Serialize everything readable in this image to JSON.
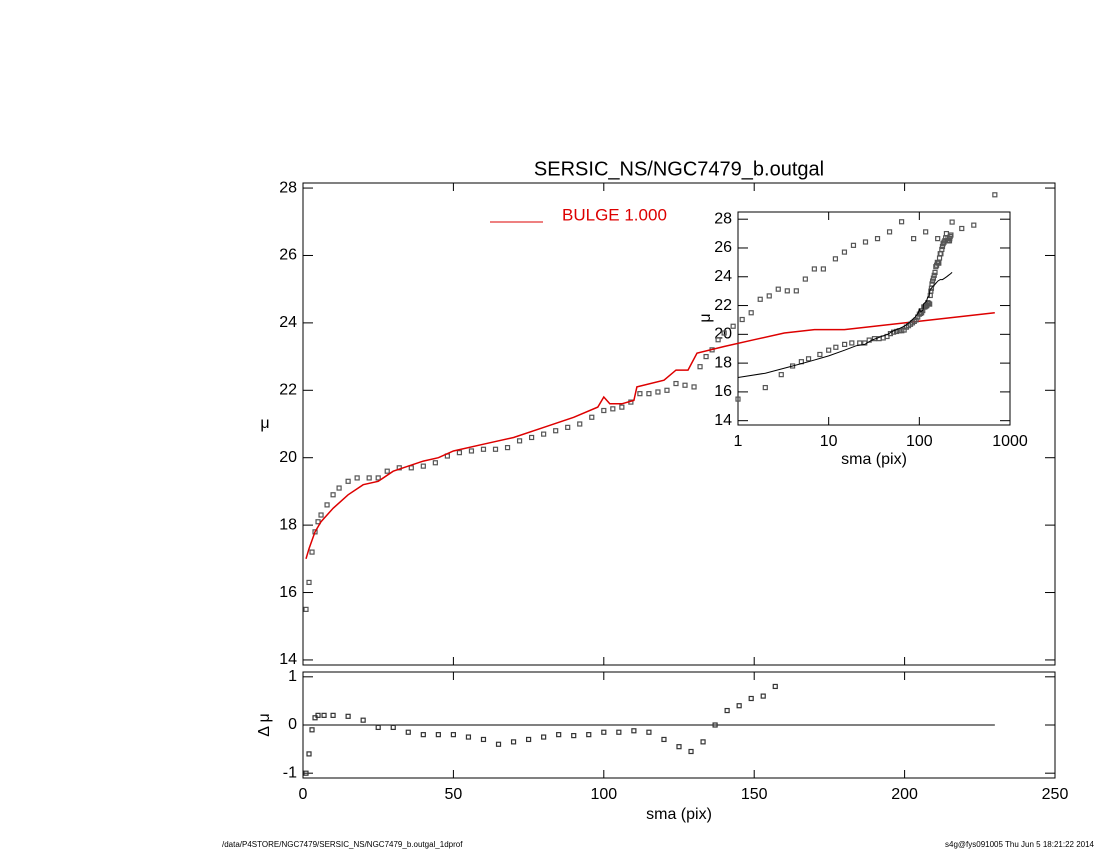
{
  "chart_data": [
    {
      "type": "scatter",
      "title": "SERSIC_NS/NGC7479_b.outgal",
      "ylabel": "μ",
      "xlim": [
        0,
        250
      ],
      "xticks": [
        0,
        50,
        100,
        150,
        200,
        250
      ],
      "ylim": [
        13.85,
        28.15
      ],
      "yticks": [
        14,
        16,
        18,
        20,
        22,
        24,
        26,
        28
      ],
      "legend": "top",
      "series": [
        {
          "color": "#555555",
          "marker": "square",
          "x": [
            1,
            2,
            3,
            4,
            5,
            6,
            8,
            10,
            12,
            15,
            18,
            22,
            25,
            28,
            32,
            36,
            40,
            44,
            48,
            52,
            56,
            60,
            64,
            68,
            72,
            76,
            80,
            84,
            88,
            92,
            96,
            100,
            103,
            106,
            109,
            112,
            115,
            118,
            121,
            124,
            127,
            130,
            132,
            134,
            136,
            138,
            140,
            143,
            146,
            149,
            152,
            155,
            158,
            161,
            164,
            167,
            170,
            173,
            177,
            180,
            183,
            187,
            191,
            195,
            199,
            203,
            207,
            211,
            215,
            219,
            223,
            230
          ],
          "values": [
            15.5,
            16.3,
            17.2,
            17.8,
            18.1,
            18.3,
            18.6,
            18.9,
            19.1,
            19.3,
            19.4,
            19.4,
            19.4,
            19.6,
            19.7,
            19.7,
            19.75,
            19.85,
            20.05,
            20.15,
            20.2,
            20.25,
            20.25,
            20.3,
            20.5,
            20.6,
            20.7,
            20.8,
            20.9,
            21.0,
            21.2,
            21.4,
            21.45,
            21.5,
            21.65,
            21.9,
            21.9,
            21.95,
            22.0,
            22.2,
            22.15,
            22.1,
            22.7,
            23.0,
            23.2,
            23.5,
            23.7,
            23.9,
            24.1,
            24.3,
            24.7,
            24.8,
            25.0,
            24.95,
            24.95,
            25.3,
            25.6,
            25.6,
            25.9,
            26.1,
            26.3,
            26.4,
            26.5,
            26.7,
            27.0,
            26.5,
            26.7,
            26.5,
            26.5,
            26.8,
            26.9,
            27.8
          ]
        },
        {
          "name": "BULGE  1.000",
          "color": "#dd0000",
          "x": [
            1,
            2,
            4,
            6,
            10,
            15,
            20,
            25,
            30,
            40,
            45,
            50,
            60,
            70,
            80,
            90,
            98,
            100,
            102,
            106,
            110,
            111,
            120,
            124,
            128,
            131,
            140,
            150,
            160,
            170,
            180,
            190,
            200,
            210,
            220,
            230
          ],
          "values": [
            17.0,
            17.3,
            17.8,
            18.1,
            18.5,
            18.9,
            19.2,
            19.3,
            19.6,
            19.9,
            20.0,
            20.2,
            20.4,
            20.6,
            20.9,
            21.2,
            21.5,
            21.8,
            21.6,
            21.6,
            21.7,
            22.1,
            22.3,
            22.6,
            22.6,
            23.1,
            23.3,
            23.5,
            23.7,
            23.8,
            23.8,
            23.9,
            24.0,
            24.1,
            24.2,
            24.3
          ]
        }
      ]
    },
    {
      "type": "residual",
      "ylabel": "Δ μ",
      "xlabel": "sma (pix)",
      "xlim": [
        0,
        250
      ],
      "xticks": [
        0,
        50,
        100,
        150,
        200,
        250
      ],
      "ylim": [
        -1.1,
        1.1
      ],
      "yticks": [
        -1,
        0,
        1
      ],
      "color": "#333333",
      "x": [
        1,
        2,
        3,
        4,
        5,
        7,
        10,
        15,
        20,
        25,
        30,
        35,
        40,
        45,
        50,
        55,
        60,
        65,
        70,
        75,
        80,
        85,
        90,
        95,
        100,
        105,
        110,
        115,
        120,
        125,
        129,
        133,
        137,
        141,
        145,
        149,
        153,
        157
      ],
      "values": [
        -1,
        -0.6,
        -0.1,
        0.15,
        0.2,
        0.2,
        0.2,
        0.18,
        0.1,
        -0.05,
        -0.05,
        -0.15,
        -0.2,
        -0.2,
        -0.2,
        -0.25,
        -0.3,
        -0.4,
        -0.35,
        -0.3,
        -0.25,
        -0.2,
        -0.22,
        -0.2,
        -0.15,
        -0.15,
        -0.12,
        -0.15,
        -0.3,
        -0.45,
        -0.55,
        -0.35,
        0.0,
        0.3,
        0.4,
        0.55,
        0.6,
        0.8
      ]
    },
    {
      "type": "inset",
      "xscale": "log",
      "ylabel": "μ",
      "xlabel": "sma (pix)",
      "xlim": [
        1,
        1000
      ],
      "xticks": [
        1,
        10,
        100,
        1000
      ],
      "ylim": [
        13.7,
        28.5
      ],
      "yticks": [
        14,
        16,
        18,
        20,
        22,
        24,
        26,
        28
      ],
      "marker_color": "#555555",
      "line_color": "#000000"
    }
  ],
  "footer": {
    "left": "/data/P4STORE/NGC7479/SERSIC_NS/NGC7479_b.outgal_1dprof",
    "right": "s4g@fys091005  Thu Jun  5 18:21:22 2014"
  }
}
